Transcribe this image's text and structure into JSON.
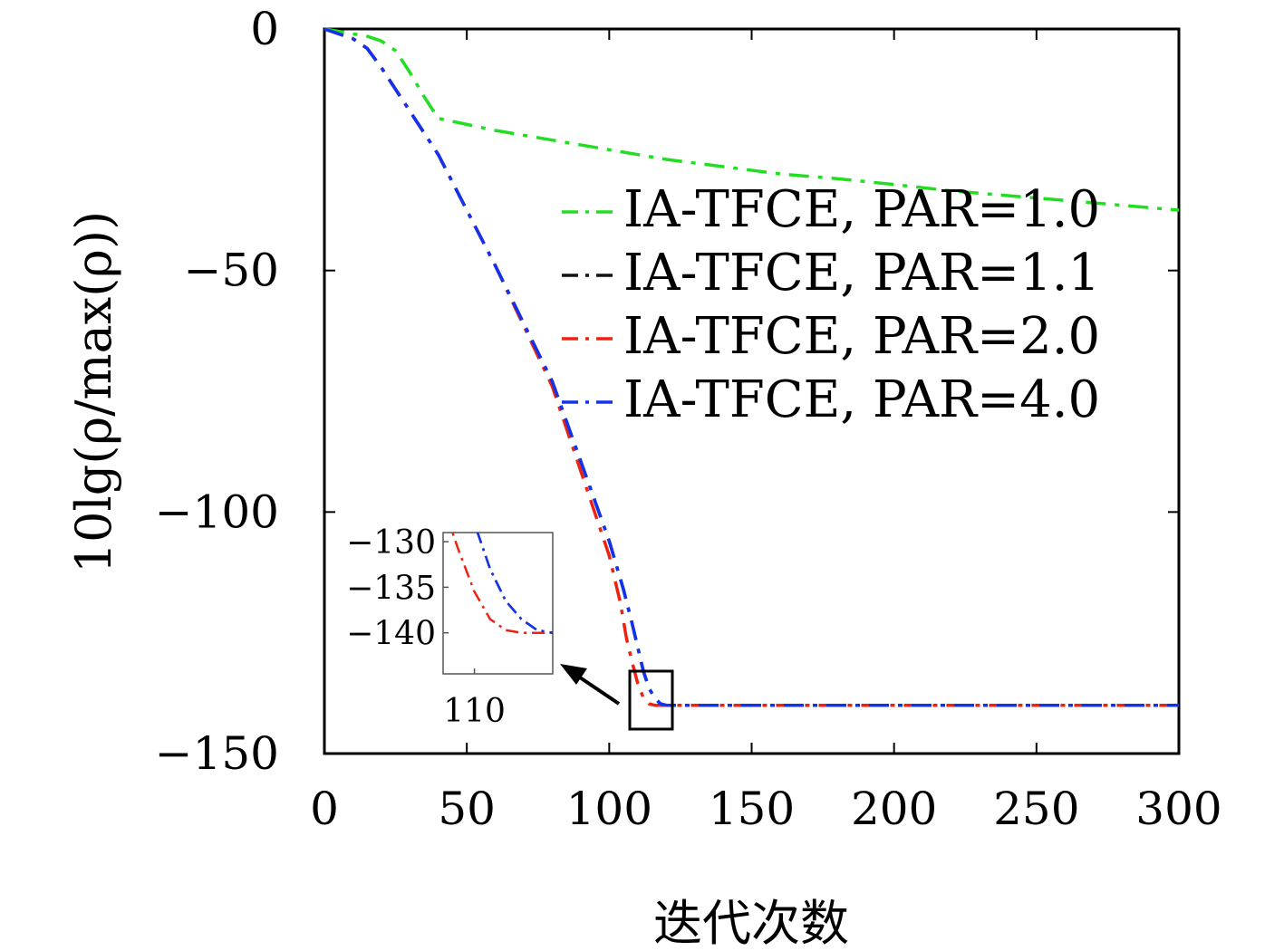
{
  "chart_data": {
    "type": "line",
    "title": "",
    "xlabel": "迭代次数",
    "ylabel": "10lg(ρ/max(ρ))",
    "xlim": [
      0,
      300
    ],
    "ylim": [
      -150,
      0
    ],
    "xticks": [
      0,
      50,
      100,
      150,
      200,
      250,
      300
    ],
    "yticks": [
      0,
      -50,
      -100,
      -150
    ],
    "grid": false,
    "legend_position": "upper-right",
    "series": [
      {
        "name": "IA-TFCE, PAR=1.0",
        "color": "#22dd22",
        "x": [
          0,
          10,
          15,
          20,
          25,
          30,
          35,
          40,
          60,
          80,
          100,
          120,
          140,
          160,
          180,
          200,
          220,
          240,
          260,
          280,
          300
        ],
        "y": [
          0,
          -1,
          -1.5,
          -2.5,
          -4.5,
          -9,
          -14,
          -18.5,
          -21,
          -23,
          -25,
          -27,
          -28.5,
          -30,
          -31,
          -32.2,
          -33.5,
          -34.5,
          -35.5,
          -36.5,
          -37.5
        ]
      },
      {
        "name": "IA-TFCE, PAR=1.1",
        "color": "#111111",
        "x": [
          0,
          10,
          15,
          20,
          30,
          40,
          60,
          80,
          100,
          105,
          108,
          110,
          112,
          114,
          116,
          118,
          120,
          130,
          150,
          200,
          250,
          300
        ],
        "y": [
          0,
          -2,
          -4,
          -8,
          -17,
          -26,
          -49,
          -73,
          -106,
          -116,
          -123,
          -128,
          -133,
          -136.5,
          -138.5,
          -139.7,
          -140,
          -140,
          -140,
          -140,
          -140,
          -140
        ]
      },
      {
        "name": "IA-TFCE, PAR=2.0",
        "color": "#ee2211",
        "x": [
          0,
          10,
          15,
          20,
          30,
          40,
          60,
          80,
          100,
          104,
          106,
          108,
          110,
          112,
          114,
          116,
          120,
          130,
          150,
          200,
          250,
          300
        ],
        "y": [
          0,
          -2,
          -4,
          -8,
          -17,
          -26,
          -49,
          -74,
          -109,
          -119,
          -126,
          -131,
          -135.5,
          -138.5,
          -139.7,
          -140,
          -140,
          -140,
          -140,
          -140,
          -140,
          -140
        ]
      },
      {
        "name": "IA-TFCE, PAR=4.0",
        "color": "#1133ee",
        "x": [
          0,
          10,
          15,
          20,
          30,
          40,
          60,
          80,
          100,
          105,
          108,
          110,
          112,
          114,
          116,
          118,
          120,
          130,
          150,
          200,
          250,
          300
        ],
        "y": [
          0,
          -2,
          -4,
          -8,
          -17,
          -26,
          -49,
          -73,
          -106,
          -116,
          -123,
          -128,
          -133,
          -136.5,
          -138.5,
          -139.7,
          -140,
          -140,
          -140,
          -140,
          -140,
          -140
        ]
      }
    ],
    "inset": {
      "xlim": [
        106,
        120
      ],
      "ylim": [
        -144.5,
        -129
      ],
      "xticks": [
        110
      ],
      "yticks": [
        -130,
        -135,
        -140
      ]
    }
  }
}
